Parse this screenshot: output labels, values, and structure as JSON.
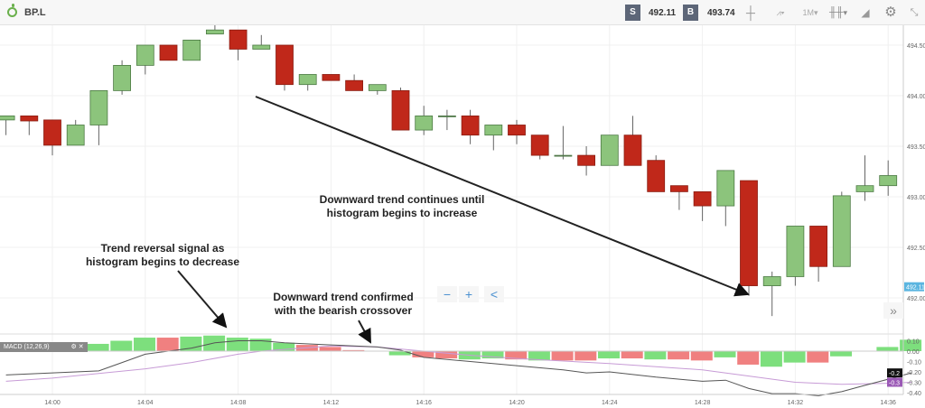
{
  "header": {
    "symbol": "BP.L",
    "sell_label": "S",
    "sell_price": "492.11",
    "buy_label": "B",
    "buy_price": "493.74",
    "timeframe": "1M",
    "icons": [
      "crosshair-icon",
      "chart-type-icon",
      "candlestick-icon",
      "drawing-icon",
      "gear-icon",
      "collapse-icon"
    ],
    "dropdown": "▾"
  },
  "zoom": {
    "minus": "−",
    "plus": "+",
    "share": "<",
    "scroll": "»"
  },
  "annotations": {
    "reversal": [
      "Trend reversal signal as",
      "histogram begins to decrease"
    ],
    "confirmed": [
      "Downward trend confirmed",
      "with the bearish crossover"
    ],
    "continues": [
      "Downward trend continues until",
      "histogram begins to increase"
    ]
  },
  "colors": {
    "up": "#8cc47c",
    "down": "#c0281a",
    "hist_up": "#7ddf7d",
    "hist_down": "#f08080",
    "macd": "#555555",
    "signal": "#c79bd6",
    "price_tag": "#5bb5e0"
  },
  "chart_data": [
    {
      "type": "candlestick",
      "title": "BP.L",
      "ylim": [
        491.8,
        494.75
      ],
      "grid": true,
      "y_ticks": [
        "494.50",
        "494.00",
        "493.50",
        "493.00",
        "492.50",
        "492.00"
      ],
      "x_ticks": [
        "14:00",
        "14:04",
        "14:08",
        "14:12",
        "14:16",
        "14:20",
        "14:24",
        "14:28",
        "14:32",
        "14:36"
      ],
      "current_price_tag": "492.11",
      "candles": [
        [
          "13:58",
          493.76,
          493.8,
          493.61,
          493.8
        ],
        [
          "13:59",
          493.8,
          493.8,
          493.61,
          493.75
        ],
        [
          "14:00",
          493.76,
          493.76,
          493.41,
          493.51
        ],
        [
          "14:01",
          493.51,
          493.76,
          493.51,
          493.71
        ],
        [
          "14:02",
          493.71,
          494.05,
          493.51,
          494.05
        ],
        [
          "14:03",
          494.05,
          494.35,
          494.01,
          494.3
        ],
        [
          "14:04",
          494.3,
          494.5,
          494.21,
          494.5
        ],
        [
          "14:05",
          494.5,
          494.5,
          494.35,
          494.35
        ],
        [
          "14:06",
          494.35,
          494.55,
          494.35,
          494.55
        ],
        [
          "14:07",
          494.61,
          494.7,
          494.61,
          494.65
        ],
        [
          "14:08",
          494.65,
          494.65,
          494.35,
          494.46
        ],
        [
          "14:09",
          494.46,
          494.6,
          494.46,
          494.5
        ],
        [
          "14:10",
          494.5,
          494.5,
          494.05,
          494.11
        ],
        [
          "14:11",
          494.11,
          494.21,
          494.05,
          494.21
        ],
        [
          "14:12",
          494.21,
          494.21,
          494.15,
          494.15
        ],
        [
          "14:13",
          494.15,
          494.21,
          494.05,
          494.05
        ],
        [
          "14:14",
          494.05,
          494.11,
          494.01,
          494.11
        ],
        [
          "14:15",
          494.05,
          494.08,
          493.66,
          493.66
        ],
        [
          "14:16",
          493.66,
          493.9,
          493.61,
          493.8
        ],
        [
          "14:17",
          493.8,
          493.86,
          493.66,
          493.8
        ],
        [
          "14:18",
          493.8,
          493.86,
          493.52,
          493.61
        ],
        [
          "14:19",
          493.61,
          493.71,
          493.46,
          493.71
        ],
        [
          "14:20",
          493.71,
          493.76,
          493.52,
          493.61
        ],
        [
          "14:21",
          493.61,
          493.61,
          493.37,
          493.41
        ],
        [
          "14:22",
          493.41,
          493.7,
          493.37,
          493.41
        ],
        [
          "14:23",
          493.41,
          493.5,
          493.21,
          493.31
        ],
        [
          "14:24",
          493.31,
          493.61,
          493.31,
          493.61
        ],
        [
          "14:25",
          493.61,
          493.8,
          493.31,
          493.31
        ],
        [
          "14:26",
          493.36,
          493.41,
          493.05,
          493.05
        ],
        [
          "14:27",
          493.11,
          493.11,
          492.87,
          493.05
        ],
        [
          "14:28",
          493.05,
          493.05,
          492.76,
          492.91
        ],
        [
          "14:29",
          492.91,
          493.26,
          492.71,
          493.26
        ],
        [
          "14:30",
          493.16,
          493.16,
          492.02,
          492.12
        ],
        [
          "14:31",
          492.12,
          492.26,
          491.82,
          492.21
        ],
        [
          "14:32",
          492.21,
          492.71,
          492.12,
          492.71
        ],
        [
          "14:33",
          492.71,
          492.71,
          492.16,
          492.31
        ],
        [
          "14:34",
          492.31,
          493.05,
          492.31,
          493.01
        ],
        [
          "14:35",
          493.05,
          493.41,
          492.96,
          493.11
        ],
        [
          "14:36",
          493.11,
          493.36,
          493.01,
          493.21
        ]
      ]
    },
    {
      "type": "bar+line",
      "title": "MACD (12,26,9)",
      "ylim": [
        -0.44,
        0.12
      ],
      "y_ticks": [
        "0.10",
        "0.00",
        "-0.10",
        "-0.20",
        "-0.30",
        "-0.40"
      ],
      "macd_tag": "-0.2",
      "signal_tag": "-0.3",
      "histogram": [
        [
          "14:00",
          0.04
        ],
        [
          "14:01",
          0.04
        ],
        [
          "14:02",
          0.07
        ],
        [
          "14:03",
          0.1
        ],
        [
          "14:04",
          0.13
        ],
        [
          "14:05",
          0.13
        ],
        [
          "14:06",
          0.14
        ],
        [
          "14:07",
          0.15
        ],
        [
          "14:08",
          0.13
        ],
        [
          "14:09",
          0.12
        ],
        [
          "14:10",
          0.08
        ],
        [
          "14:11",
          0.06
        ],
        [
          "14:12",
          0.04
        ],
        [
          "14:13",
          0.01
        ],
        [
          "14:15",
          -0.04
        ],
        [
          "14:16",
          -0.06
        ],
        [
          "14:17",
          -0.07
        ],
        [
          "14:18",
          -0.08
        ],
        [
          "14:19",
          -0.07
        ],
        [
          "14:20",
          -0.08
        ],
        [
          "14:21",
          -0.09
        ],
        [
          "14:22",
          -0.09
        ],
        [
          "14:23",
          -0.09
        ],
        [
          "14:24",
          -0.07
        ],
        [
          "14:25",
          -0.07
        ],
        [
          "14:26",
          -0.08
        ],
        [
          "14:27",
          -0.08
        ],
        [
          "14:28",
          -0.09
        ],
        [
          "14:29",
          -0.06
        ],
        [
          "14:30",
          -0.13
        ],
        [
          "14:31",
          -0.15
        ],
        [
          "14:32",
          -0.11
        ],
        [
          "14:33",
          -0.11
        ],
        [
          "14:34",
          -0.05
        ],
        [
          "14:36",
          0.04
        ],
        [
          "14:37",
          0.11
        ]
      ],
      "macd": [
        [
          "13:58",
          -0.23
        ],
        [
          "14:00",
          -0.21
        ],
        [
          "14:02",
          -0.19
        ],
        [
          "14:04",
          -0.03
        ],
        [
          "14:06",
          0.03
        ],
        [
          "14:07",
          0.08
        ],
        [
          "14:08",
          0.1
        ],
        [
          "14:09",
          0.1
        ],
        [
          "14:10",
          0.08
        ],
        [
          "14:12",
          0.06
        ],
        [
          "14:14",
          0.04
        ],
        [
          "14:15",
          0.01
        ],
        [
          "14:16",
          -0.06
        ],
        [
          "14:18",
          -0.1
        ],
        [
          "14:20",
          -0.14
        ],
        [
          "14:22",
          -0.18
        ],
        [
          "14:23",
          -0.21
        ],
        [
          "14:24",
          -0.2
        ],
        [
          "14:26",
          -0.25
        ],
        [
          "14:28",
          -0.29
        ],
        [
          "14:29",
          -0.28
        ],
        [
          "14:30",
          -0.36
        ],
        [
          "14:31",
          -0.41
        ],
        [
          "14:32",
          -0.41
        ],
        [
          "14:33",
          -0.43
        ],
        [
          "14:34",
          -0.39
        ],
        [
          "14:35",
          -0.33
        ],
        [
          "14:36",
          -0.27
        ],
        [
          "14:37",
          -0.21
        ]
      ],
      "signal": [
        [
          "13:58",
          -0.29
        ],
        [
          "14:00",
          -0.26
        ],
        [
          "14:04",
          -0.17
        ],
        [
          "14:06",
          -0.11
        ],
        [
          "14:08",
          -0.03
        ],
        [
          "14:09",
          0.0
        ],
        [
          "14:12",
          0.05
        ],
        [
          "14:14",
          0.04
        ],
        [
          "14:16",
          0.0
        ],
        [
          "14:18",
          -0.04
        ],
        [
          "14:20",
          -0.07
        ],
        [
          "14:24",
          -0.12
        ],
        [
          "14:28",
          -0.18
        ],
        [
          "14:30",
          -0.24
        ],
        [
          "14:32",
          -0.3
        ],
        [
          "14:34",
          -0.32
        ],
        [
          "14:36",
          -0.31
        ],
        [
          "14:37",
          -0.3
        ]
      ]
    }
  ]
}
